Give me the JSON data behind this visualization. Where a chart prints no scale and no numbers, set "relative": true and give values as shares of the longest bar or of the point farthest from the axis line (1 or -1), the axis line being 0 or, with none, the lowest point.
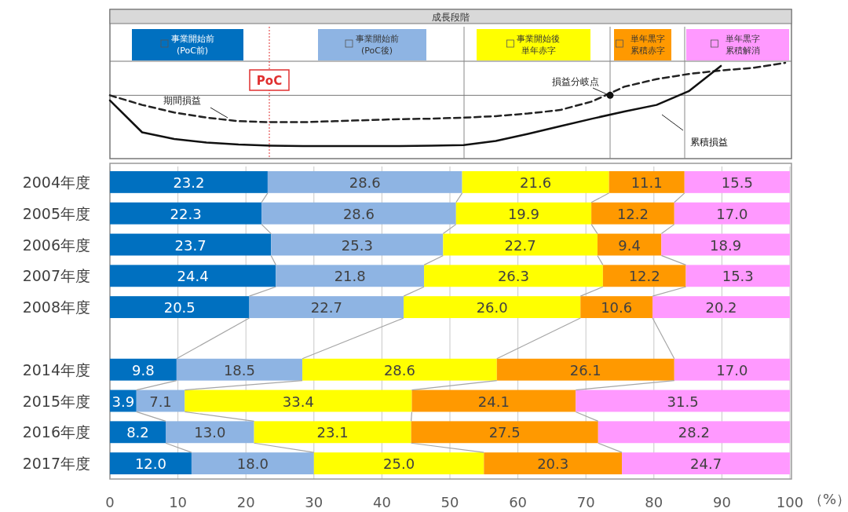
{
  "chart_data": [
    {
      "type": "line",
      "relative": true,
      "title": "成長段階",
      "categories": [
        null,
        null,
        null,
        null,
        null,
        null,
        null,
        null,
        null,
        null,
        null,
        null,
        null,
        null,
        null,
        null,
        null,
        null,
        null,
        null,
        null,
        null
      ],
      "series": [
        {
          "name": "期間損益",
          "color": "#222222",
          "line_style": "dashed",
          "values": [
            0,
            -0.19,
            -0.34,
            -0.44,
            -0.51,
            -0.53,
            -0.53,
            -0.51,
            -0.49,
            -0.47,
            -0.46,
            -0.44,
            -0.41,
            -0.36,
            -0.29,
            -0.12,
            0.17,
            0.32,
            0.42,
            0.49,
            0.54,
            0.64
          ]
        },
        {
          "name": "累積損益",
          "color": "#111111",
          "line_style": "solid",
          "values": [
            -0.1,
            -0.73,
            -0.86,
            -0.93,
            -0.97,
            -0.99,
            -1,
            -1,
            -1,
            -1,
            -0.99,
            -0.98,
            -0.9,
            -0.76,
            -0.61,
            -0.46,
            -0.32,
            -0.19,
            0.08,
            0.58,
            null,
            null
          ]
        }
      ],
      "annotations": [
        "PoC",
        "損益分岐点"
      ]
    },
    {
      "type": "bar",
      "orientation": "horizontal",
      "stacked": true,
      "legend": "top",
      "grid": "x",
      "categories": [
        "2004年度",
        "2005年度",
        "2006年度",
        "2007年度",
        "2008年度",
        null,
        "2014年度",
        "2015年度",
        "2016年度",
        "2017年度"
      ],
      "series": [
        {
          "name": "事業開始前(PoC前)",
          "color": "#0070c0",
          "values": [
            23.2,
            22.3,
            23.7,
            24.4,
            20.5,
            null,
            9.8,
            3.9,
            8.2,
            12.0
          ],
          "value_labels": [
            "23.2",
            "22.3",
            "23.7",
            "24.4",
            "20.5",
            null,
            "9.8",
            "3.9",
            "8.2",
            "12.0"
          ]
        },
        {
          "name": "事業開始前(PoC後)",
          "color": "#8eb4e3",
          "values": [
            28.6,
            28.6,
            25.3,
            21.8,
            22.7,
            null,
            18.5,
            7.1,
            13.0,
            18.0
          ],
          "value_labels": [
            "28.6",
            "28.6",
            "25.3",
            "21.8",
            "22.7",
            null,
            "18.5",
            "7.1",
            "13.0",
            "18.0"
          ]
        },
        {
          "name": "事業開始後単年赤字",
          "color": "#ffff00",
          "values": [
            21.6,
            19.9,
            22.7,
            26.3,
            26.0,
            null,
            28.6,
            33.4,
            23.1,
            25.0
          ],
          "value_labels": [
            "21.6",
            "19.9",
            "22.7",
            "26.3",
            "26.0",
            null,
            "28.6",
            "33.4",
            "23.1",
            "25.0"
          ]
        },
        {
          "name": "単年黒字累積赤字",
          "color": "#ff9900",
          "values": [
            11.1,
            12.2,
            9.4,
            12.2,
            10.6,
            null,
            26.1,
            24.1,
            27.5,
            20.3
          ],
          "value_labels": [
            "11.1",
            "12.2",
            "9.4",
            "12.2",
            "10.6",
            null,
            "26.1",
            "24.1",
            "27.5",
            "20.3"
          ]
        },
        {
          "name": "単年黒字累積解消",
          "color": "#ff99ff",
          "values": [
            15.5,
            17.0,
            18.9,
            15.3,
            20.2,
            null,
            17.0,
            31.5,
            28.2,
            24.7
          ],
          "value_labels": [
            "15.5",
            "17.0",
            "18.9",
            "15.3",
            "20.2",
            null,
            "17.0",
            "31.5",
            "28.2",
            "24.7"
          ]
        }
      ],
      "xlim": [
        0,
        100
      ],
      "xticks": [
        0,
        10,
        20,
        30,
        40,
        50,
        60,
        70,
        80,
        90,
        100
      ],
      "xlabel": "（%）"
    }
  ]
}
